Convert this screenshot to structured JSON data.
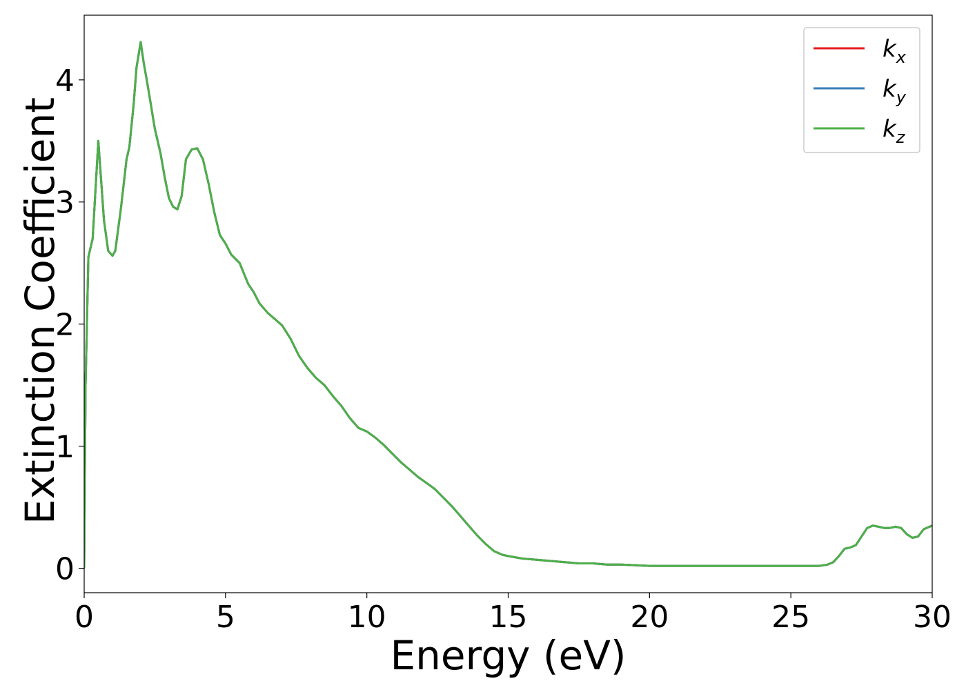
{
  "chart_data": {
    "type": "line",
    "xlabel": "Energy (eV)",
    "ylabel": "Extinction Coefficient",
    "xlim": [
      0,
      30
    ],
    "ylim": [
      -0.2,
      4.53
    ],
    "xticks": [
      0,
      5,
      10,
      15,
      20,
      25,
      30
    ],
    "xtick_labels": [
      "0",
      "5",
      "10",
      "15",
      "20",
      "25",
      "30"
    ],
    "yticks": [
      0,
      1,
      2,
      3,
      4
    ],
    "ytick_labels": [
      "0",
      "1",
      "2",
      "3",
      "4"
    ],
    "grid": false,
    "legend_position": "top-right",
    "series": [
      {
        "name": "k",
        "subscript": "x",
        "color": "#e41a1c"
      },
      {
        "name": "k",
        "subscript": "y",
        "color": "#377eb8"
      },
      {
        "name": "k",
        "subscript": "z",
        "color": "#4daf4a"
      }
    ],
    "x": [
      0,
      0.05,
      0.15,
      0.3,
      0.5,
      0.7,
      0.85,
      1.0,
      1.1,
      1.3,
      1.5,
      1.6,
      1.75,
      1.85,
      2.0,
      2.1,
      2.25,
      2.5,
      2.7,
      2.85,
      3.0,
      3.15,
      3.3,
      3.45,
      3.6,
      3.8,
      4.0,
      4.2,
      4.4,
      4.6,
      4.8,
      5.0,
      5.2,
      5.5,
      5.8,
      6.0,
      6.2,
      6.5,
      6.8,
      7.0,
      7.3,
      7.6,
      7.9,
      8.2,
      8.5,
      8.8,
      9.1,
      9.4,
      9.7,
      10.0,
      10.3,
      10.6,
      10.9,
      11.2,
      11.5,
      11.8,
      12.1,
      12.4,
      12.7,
      13.0,
      13.3,
      13.6,
      13.9,
      14.2,
      14.5,
      14.8,
      15.0,
      15.5,
      16.0,
      16.5,
      17.0,
      17.5,
      18.0,
      18.5,
      19.0,
      20.0,
      21.0,
      22.0,
      23.0,
      24.0,
      25.0,
      25.5,
      26.0,
      26.3,
      26.5,
      26.7,
      26.9,
      27.1,
      27.3,
      27.5,
      27.7,
      27.9,
      28.1,
      28.3,
      28.5,
      28.7,
      28.9,
      29.1,
      29.3,
      29.5,
      29.7,
      30.0
    ],
    "y": [
      0.0,
      1.5,
      2.55,
      2.7,
      3.5,
      2.85,
      2.6,
      2.56,
      2.6,
      2.95,
      3.35,
      3.45,
      3.8,
      4.1,
      4.31,
      4.15,
      3.95,
      3.6,
      3.4,
      3.2,
      3.03,
      2.96,
      2.94,
      3.05,
      3.35,
      3.43,
      3.44,
      3.35,
      3.15,
      2.92,
      2.73,
      2.66,
      2.57,
      2.5,
      2.33,
      2.26,
      2.17,
      2.09,
      2.03,
      1.99,
      1.88,
      1.74,
      1.64,
      1.56,
      1.5,
      1.41,
      1.33,
      1.23,
      1.15,
      1.12,
      1.07,
      1.01,
      0.94,
      0.87,
      0.81,
      0.75,
      0.7,
      0.65,
      0.58,
      0.51,
      0.43,
      0.35,
      0.27,
      0.2,
      0.14,
      0.11,
      0.1,
      0.08,
      0.07,
      0.06,
      0.05,
      0.04,
      0.04,
      0.03,
      0.03,
      0.02,
      0.02,
      0.02,
      0.02,
      0.02,
      0.02,
      0.02,
      0.02,
      0.03,
      0.05,
      0.1,
      0.16,
      0.17,
      0.19,
      0.26,
      0.33,
      0.35,
      0.34,
      0.33,
      0.33,
      0.34,
      0.33,
      0.28,
      0.25,
      0.26,
      0.32,
      0.35
    ]
  }
}
